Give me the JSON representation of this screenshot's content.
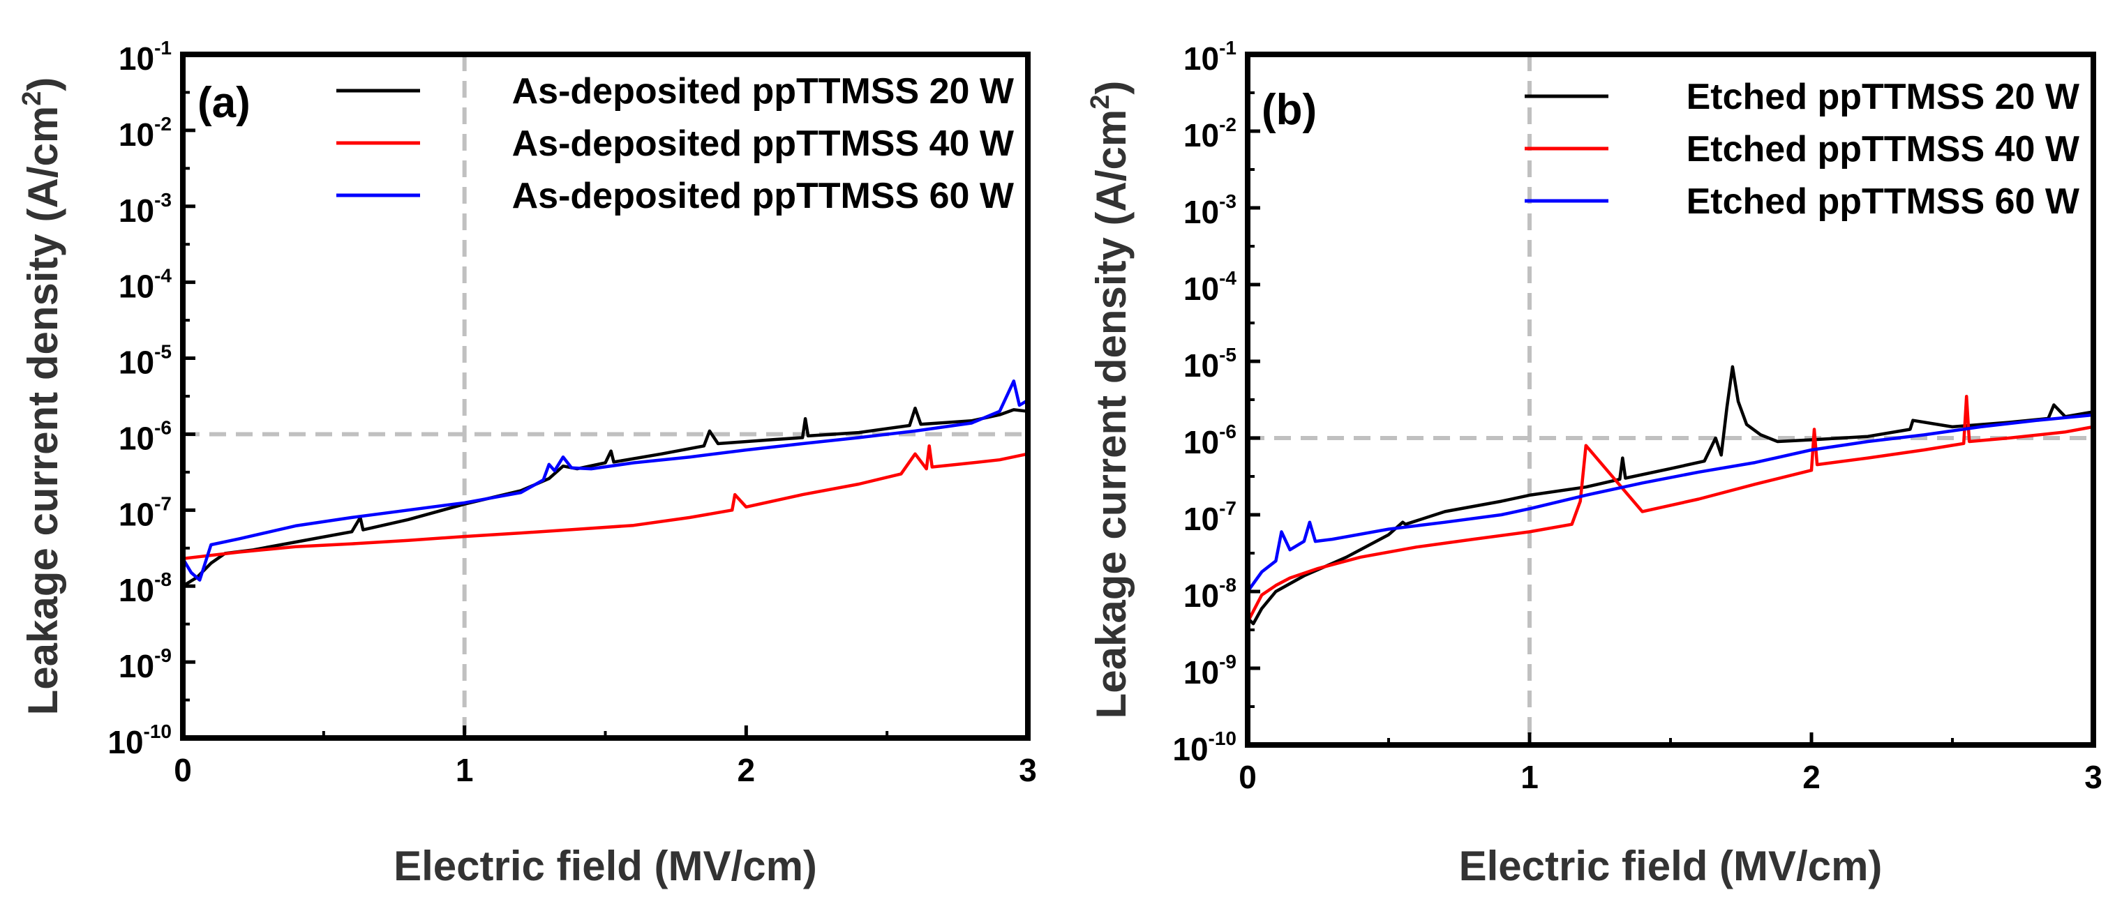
{
  "chart_data": [
    {
      "type": "line",
      "panel_label": "(a)",
      "xlabel": "Electric field (MV/cm)",
      "ylabel": "Leakage current density (A/cm",
      "ylabel_sup": "2",
      "ylabel_end": ")",
      "xlim": [
        0,
        3
      ],
      "ylim_exp": [
        -10,
        -1
      ],
      "y_scale": "log",
      "x_ticks": [
        "0",
        "1",
        "2",
        "3"
      ],
      "y_ticks": [
        {
          "base": "10",
          "exp": "-1"
        },
        {
          "base": "10",
          "exp": "-2"
        },
        {
          "base": "10",
          "exp": "-3"
        },
        {
          "base": "10",
          "exp": "-4"
        },
        {
          "base": "10",
          "exp": "-5"
        },
        {
          "base": "10",
          "exp": "-6"
        },
        {
          "base": "10",
          "exp": "-7"
        },
        {
          "base": "10",
          "exp": "-8"
        },
        {
          "base": "10",
          "exp": "-9"
        },
        {
          "base": "10",
          "exp": "-10"
        }
      ],
      "reference_lines": {
        "x": 1,
        "y": 1e-06
      },
      "legend_position": "top-right",
      "series": [
        {
          "name": "As-deposited ppTTMSS 20 W",
          "color": "#000000",
          "x": [
            0,
            0.05,
            0.1,
            0.15,
            0.25,
            0.4,
            0.6,
            0.63,
            0.64,
            0.8,
            1.0,
            1.2,
            1.3,
            1.35,
            1.4,
            1.5,
            1.52,
            1.53,
            1.7,
            1.85,
            1.87,
            1.9,
            2.1,
            2.2,
            2.21,
            2.22,
            2.4,
            2.58,
            2.6,
            2.62,
            2.8,
            2.9,
            2.95,
            3.0
          ],
          "y": [
            1e-08,
            1.3e-08,
            2e-08,
            2.7e-08,
            3e-08,
            3.8e-08,
            5.2e-08,
            8e-08,
            5.5e-08,
            7.5e-08,
            1.2e-07,
            1.8e-07,
            2.6e-07,
            3.8e-07,
            3.5e-07,
            4.2e-07,
            6e-07,
            4.3e-07,
            5.5e-07,
            7e-07,
            1.1e-06,
            7.5e-07,
            8.5e-07,
            9e-07,
            1.6e-06,
            9.5e-07,
            1.05e-06,
            1.3e-06,
            2.2e-06,
            1.35e-06,
            1.5e-06,
            1.8e-06,
            2.1e-06,
            2e-06
          ]
        },
        {
          "name": "As-deposited ppTTMSS 40 W",
          "color": "#ff0000",
          "x": [
            0,
            0.2,
            0.4,
            0.6,
            0.8,
            1.0,
            1.2,
            1.4,
            1.6,
            1.8,
            1.95,
            1.96,
            2.0,
            2.2,
            2.4,
            2.55,
            2.6,
            2.64,
            2.65,
            2.66,
            2.75,
            2.9,
            3.0
          ],
          "y": [
            2.3e-08,
            2.8e-08,
            3.3e-08,
            3.6e-08,
            4e-08,
            4.5e-08,
            5e-08,
            5.6e-08,
            6.3e-08,
            8e-08,
            1e-07,
            1.6e-07,
            1.1e-07,
            1.6e-07,
            2.2e-07,
            3e-07,
            5.5e-07,
            3.5e-07,
            7e-07,
            3.7e-07,
            4e-07,
            4.6e-07,
            5.5e-07
          ]
        },
        {
          "name": "As-deposited ppTTMSS 60 W",
          "color": "#0000ff",
          "x": [
            0,
            0.03,
            0.06,
            0.1,
            0.2,
            0.4,
            0.6,
            0.8,
            1.0,
            1.2,
            1.28,
            1.3,
            1.32,
            1.35,
            1.38,
            1.45,
            1.6,
            1.8,
            2.0,
            2.2,
            2.4,
            2.6,
            2.8,
            2.9,
            2.95,
            2.97,
            3.0
          ],
          "y": [
            2.3e-08,
            1.5e-08,
            1.2e-08,
            3.5e-08,
            4.2e-08,
            6.2e-08,
            8e-08,
            1e-07,
            1.25e-07,
            1.7e-07,
            2.5e-07,
            4e-07,
            3.3e-07,
            5e-07,
            3.6e-07,
            3.5e-07,
            4.2e-07,
            5e-07,
            6.2e-07,
            7.5e-07,
            9e-07,
            1.1e-06,
            1.4e-06,
            2e-06,
            5e-06,
            2.4e-06,
            2.8e-06
          ]
        }
      ]
    },
    {
      "type": "line",
      "panel_label": "(b)",
      "xlabel": "Electric field (MV/cm)",
      "ylabel": "Leakage current density (A/cm",
      "ylabel_sup": "2",
      "ylabel_end": ")",
      "xlim": [
        0,
        3
      ],
      "ylim_exp": [
        -10,
        -1
      ],
      "y_scale": "log",
      "x_ticks": [
        "0",
        "1",
        "2",
        "3"
      ],
      "y_ticks": [
        {
          "base": "10",
          "exp": "-1"
        },
        {
          "base": "10",
          "exp": "-2"
        },
        {
          "base": "10",
          "exp": "-3"
        },
        {
          "base": "10",
          "exp": "-4"
        },
        {
          "base": "10",
          "exp": "-5"
        },
        {
          "base": "10",
          "exp": "-6"
        },
        {
          "base": "10",
          "exp": "-7"
        },
        {
          "base": "10",
          "exp": "-8"
        },
        {
          "base": "10",
          "exp": "-9"
        },
        {
          "base": "10",
          "exp": "-10"
        }
      ],
      "reference_lines": {
        "x": 1,
        "y": 1e-06
      },
      "legend_position": "top-right",
      "series": [
        {
          "name": "Etched ppTTMSS 20 W",
          "color": "#000000",
          "x": [
            0,
            0.02,
            0.05,
            0.1,
            0.2,
            0.35,
            0.5,
            0.55,
            0.56,
            0.7,
            0.9,
            1.0,
            1.2,
            1.32,
            1.33,
            1.34,
            1.5,
            1.62,
            1.66,
            1.68,
            1.7,
            1.72,
            1.74,
            1.77,
            1.82,
            1.88,
            2.0,
            2.2,
            2.35,
            2.36,
            2.5,
            2.7,
            2.84,
            2.86,
            2.9,
            3.0
          ],
          "y": [
            4.5e-09,
            3.8e-09,
            6e-09,
            1e-08,
            1.6e-08,
            2.8e-08,
            5.5e-08,
            8e-08,
            7.5e-08,
            1.1e-07,
            1.5e-07,
            1.8e-07,
            2.3e-07,
            2.9e-07,
            5.5e-07,
            3e-07,
            4e-07,
            5e-07,
            1e-06,
            6e-07,
            2.5e-06,
            8.5e-06,
            3e-06,
            1.5e-06,
            1.1e-06,
            9e-07,
            9.5e-07,
            1.05e-06,
            1.3e-06,
            1.7e-06,
            1.4e-06,
            1.6e-06,
            1.8e-06,
            2.7e-06,
            1.9e-06,
            2.2e-06
          ]
        },
        {
          "name": "Etched ppTTMSS 40 W",
          "color": "#ff0000",
          "x": [
            0,
            0.05,
            0.1,
            0.15,
            0.25,
            0.4,
            0.6,
            0.8,
            1.0,
            1.15,
            1.18,
            1.2,
            1.4,
            1.6,
            1.8,
            2.0,
            2.01,
            2.02,
            2.2,
            2.4,
            2.54,
            2.55,
            2.56,
            2.7,
            2.9,
            3.0
          ],
          "y": [
            4e-09,
            9e-09,
            1.2e-08,
            1.5e-08,
            2e-08,
            2.8e-08,
            3.8e-08,
            4.8e-08,
            6e-08,
            7.5e-08,
            1.5e-07,
            8e-07,
            1.1e-07,
            1.6e-07,
            2.5e-07,
            3.8e-07,
            1.3e-06,
            4.5e-07,
            5.5e-07,
            7e-07,
            8.5e-07,
            3.5e-06,
            9e-07,
            1e-06,
            1.2e-06,
            1.4e-06
          ]
        },
        {
          "name": "Etched ppTTMSS 60 W",
          "color": "#0000ff",
          "x": [
            0,
            0.05,
            0.1,
            0.12,
            0.15,
            0.2,
            0.22,
            0.24,
            0.3,
            0.5,
            0.7,
            0.9,
            1.0,
            1.2,
            1.4,
            1.6,
            1.8,
            2.0,
            2.2,
            2.4,
            2.6,
            2.8,
            3.0
          ],
          "y": [
            1e-08,
            1.8e-08,
            2.5e-08,
            6e-08,
            3.5e-08,
            4.5e-08,
            8e-08,
            4.5e-08,
            4.8e-08,
            6.5e-08,
            8e-08,
            1e-07,
            1.2e-07,
            1.8e-07,
            2.6e-07,
            3.6e-07,
            4.8e-07,
            7e-07,
            9e-07,
            1.1e-06,
            1.4e-06,
            1.7e-06,
            2e-06
          ]
        }
      ]
    }
  ]
}
